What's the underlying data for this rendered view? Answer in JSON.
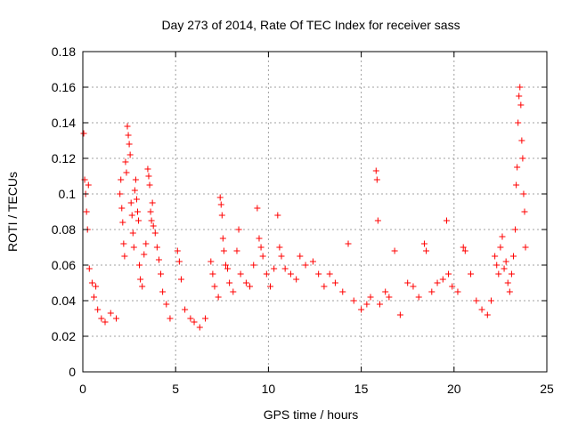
{
  "chart_data": {
    "type": "scatter",
    "title": "Day 273 of 2014, Rate Of TEC Index for receiver sass",
    "xlabel": "GPS time / hours",
    "ylabel": "ROTI / TECUs",
    "xlim": [
      0,
      25
    ],
    "ylim": [
      0,
      0.18
    ],
    "xticks": [
      0,
      5,
      10,
      15,
      20,
      25
    ],
    "xtick_labels": [
      "0",
      "5",
      "10",
      "15",
      "20",
      "25"
    ],
    "yticks": [
      0,
      0.02,
      0.04,
      0.06,
      0.08,
      0.1,
      0.12,
      0.14,
      0.16,
      0.18
    ],
    "ytick_labels": [
      "0",
      "0.02",
      "0.04",
      "0.06",
      "0.08",
      "0.1",
      "0.12",
      "0.14",
      "0.16",
      "0.18"
    ],
    "grid": true,
    "marker": "+",
    "color": "#ff0000",
    "series": [
      {
        "name": "ROTI",
        "points": [
          [
            0.05,
            0.134
          ],
          [
            0.1,
            0.108
          ],
          [
            0.15,
            0.1
          ],
          [
            0.2,
            0.09
          ],
          [
            0.25,
            0.08
          ],
          [
            0.3,
            0.105
          ],
          [
            0.35,
            0.058
          ],
          [
            0.5,
            0.05
          ],
          [
            0.6,
            0.042
          ],
          [
            0.7,
            0.048
          ],
          [
            0.8,
            0.035
          ],
          [
            1.0,
            0.03
          ],
          [
            1.2,
            0.028
          ],
          [
            1.5,
            0.033
          ],
          [
            1.8,
            0.03
          ],
          [
            2.0,
            0.1
          ],
          [
            2.05,
            0.108
          ],
          [
            2.1,
            0.092
          ],
          [
            2.15,
            0.084
          ],
          [
            2.2,
            0.072
          ],
          [
            2.25,
            0.065
          ],
          [
            2.3,
            0.118
          ],
          [
            2.35,
            0.112
          ],
          [
            2.4,
            0.138
          ],
          [
            2.45,
            0.133
          ],
          [
            2.5,
            0.128
          ],
          [
            2.55,
            0.122
          ],
          [
            2.6,
            0.095
          ],
          [
            2.65,
            0.088
          ],
          [
            2.7,
            0.078
          ],
          [
            2.75,
            0.07
          ],
          [
            2.8,
            0.102
          ],
          [
            2.85,
            0.108
          ],
          [
            2.9,
            0.097
          ],
          [
            2.95,
            0.09
          ],
          [
            3.0,
            0.085
          ],
          [
            3.05,
            0.06
          ],
          [
            3.1,
            0.052
          ],
          [
            3.2,
            0.048
          ],
          [
            3.3,
            0.066
          ],
          [
            3.4,
            0.072
          ],
          [
            3.5,
            0.114
          ],
          [
            3.55,
            0.11
          ],
          [
            3.6,
            0.105
          ],
          [
            3.65,
            0.09
          ],
          [
            3.7,
            0.085
          ],
          [
            3.75,
            0.095
          ],
          [
            3.8,
            0.082
          ],
          [
            3.9,
            0.078
          ],
          [
            4.0,
            0.07
          ],
          [
            4.1,
            0.063
          ],
          [
            4.2,
            0.055
          ],
          [
            4.3,
            0.045
          ],
          [
            4.5,
            0.038
          ],
          [
            4.7,
            0.03
          ],
          [
            5.1,
            0.068
          ],
          [
            5.2,
            0.062
          ],
          [
            5.3,
            0.052
          ],
          [
            5.5,
            0.035
          ],
          [
            5.8,
            0.03
          ],
          [
            6.0,
            0.028
          ],
          [
            6.3,
            0.025
          ],
          [
            6.6,
            0.03
          ],
          [
            6.9,
            0.062
          ],
          [
            7.0,
            0.055
          ],
          [
            7.1,
            0.048
          ],
          [
            7.3,
            0.042
          ],
          [
            7.4,
            0.098
          ],
          [
            7.45,
            0.094
          ],
          [
            7.5,
            0.088
          ],
          [
            7.55,
            0.075
          ],
          [
            7.6,
            0.068
          ],
          [
            7.7,
            0.06
          ],
          [
            7.8,
            0.058
          ],
          [
            7.9,
            0.05
          ],
          [
            8.1,
            0.045
          ],
          [
            8.3,
            0.068
          ],
          [
            8.4,
            0.08
          ],
          [
            8.5,
            0.055
          ],
          [
            8.8,
            0.05
          ],
          [
            9.0,
            0.048
          ],
          [
            9.2,
            0.06
          ],
          [
            9.4,
            0.092
          ],
          [
            9.5,
            0.075
          ],
          [
            9.6,
            0.07
          ],
          [
            9.7,
            0.065
          ],
          [
            9.9,
            0.055
          ],
          [
            10.1,
            0.048
          ],
          [
            10.3,
            0.058
          ],
          [
            10.5,
            0.088
          ],
          [
            10.6,
            0.07
          ],
          [
            10.7,
            0.065
          ],
          [
            10.9,
            0.058
          ],
          [
            11.2,
            0.055
          ],
          [
            11.5,
            0.052
          ],
          [
            11.7,
            0.065
          ],
          [
            12.0,
            0.06
          ],
          [
            12.4,
            0.062
          ],
          [
            12.7,
            0.055
          ],
          [
            13.0,
            0.048
          ],
          [
            13.3,
            0.055
          ],
          [
            13.6,
            0.05
          ],
          [
            14.0,
            0.045
          ],
          [
            14.3,
            0.072
          ],
          [
            14.6,
            0.04
          ],
          [
            15.0,
            0.035
          ],
          [
            15.3,
            0.038
          ],
          [
            15.5,
            0.042
          ],
          [
            15.8,
            0.113
          ],
          [
            15.85,
            0.108
          ],
          [
            15.9,
            0.085
          ],
          [
            16.0,
            0.038
          ],
          [
            16.3,
            0.045
          ],
          [
            16.5,
            0.042
          ],
          [
            16.8,
            0.068
          ],
          [
            17.1,
            0.032
          ],
          [
            17.5,
            0.05
          ],
          [
            17.8,
            0.048
          ],
          [
            18.1,
            0.042
          ],
          [
            18.4,
            0.072
          ],
          [
            18.5,
            0.068
          ],
          [
            18.8,
            0.045
          ],
          [
            19.1,
            0.05
          ],
          [
            19.4,
            0.052
          ],
          [
            19.6,
            0.085
          ],
          [
            19.7,
            0.055
          ],
          [
            19.9,
            0.048
          ],
          [
            20.2,
            0.045
          ],
          [
            20.5,
            0.07
          ],
          [
            20.6,
            0.068
          ],
          [
            20.9,
            0.055
          ],
          [
            21.2,
            0.04
          ],
          [
            21.5,
            0.035
          ],
          [
            21.8,
            0.032
          ],
          [
            22.0,
            0.04
          ],
          [
            22.2,
            0.065
          ],
          [
            22.3,
            0.06
          ],
          [
            22.4,
            0.055
          ],
          [
            22.5,
            0.07
          ],
          [
            22.6,
            0.076
          ],
          [
            22.7,
            0.058
          ],
          [
            22.8,
            0.062
          ],
          [
            22.9,
            0.05
          ],
          [
            23.0,
            0.045
          ],
          [
            23.1,
            0.055
          ],
          [
            23.2,
            0.065
          ],
          [
            23.3,
            0.08
          ],
          [
            23.35,
            0.105
          ],
          [
            23.4,
            0.115
          ],
          [
            23.45,
            0.14
          ],
          [
            23.5,
            0.155
          ],
          [
            23.55,
            0.16
          ],
          [
            23.6,
            0.15
          ],
          [
            23.65,
            0.13
          ],
          [
            23.7,
            0.12
          ],
          [
            23.75,
            0.1
          ],
          [
            23.8,
            0.09
          ],
          [
            23.85,
            0.07
          ]
        ]
      }
    ]
  }
}
